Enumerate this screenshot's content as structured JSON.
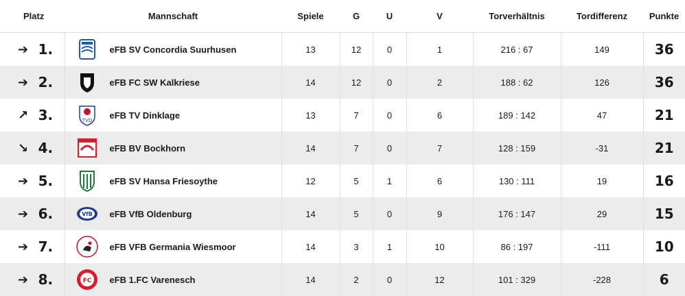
{
  "headers": {
    "platz": "Platz",
    "mannschaft": "Mannschaft",
    "spiele": "Spiele",
    "g": "G",
    "u": "U",
    "v": "V",
    "torverhaeltnis": "Torverhältnis",
    "tordifferenz": "Tordifferenz",
    "punkte": "Punkte"
  },
  "rows": [
    {
      "arrow": "➔",
      "trend": "same",
      "rank": "1.",
      "team": "eFB SV Concordia Suurhusen",
      "spiele": "13",
      "g": "12",
      "u": "0",
      "v": "1",
      "tore": "216 : 67",
      "diff": "149",
      "punkte": "36",
      "logo_color": "#1e5aa8"
    },
    {
      "arrow": "➔",
      "trend": "same",
      "rank": "2.",
      "team": "eFB FC SW Kalkriese",
      "spiele": "14",
      "g": "12",
      "u": "0",
      "v": "2",
      "tore": "188 : 62",
      "diff": "126",
      "punkte": "36",
      "logo_color": "#111111"
    },
    {
      "arrow": "↗",
      "trend": "up",
      "rank": "3.",
      "team": "eFB TV Dinklage",
      "spiele": "13",
      "g": "7",
      "u": "0",
      "v": "6",
      "tore": "189 : 142",
      "diff": "47",
      "punkte": "21",
      "logo_color": "#c8102e"
    },
    {
      "arrow": "↘",
      "trend": "down",
      "rank": "4.",
      "team": "eFB BV Bockhorn",
      "spiele": "14",
      "g": "7",
      "u": "0",
      "v": "7",
      "tore": "128 : 159",
      "diff": "-31",
      "punkte": "21",
      "logo_color": "#d3202a"
    },
    {
      "arrow": "➔",
      "trend": "same",
      "rank": "5.",
      "team": "eFB SV Hansa Friesoythe",
      "spiele": "12",
      "g": "5",
      "u": "1",
      "v": "6",
      "tore": "130 : 111",
      "diff": "19",
      "punkte": "16",
      "logo_color": "#1f7a3a"
    },
    {
      "arrow": "➔",
      "trend": "same",
      "rank": "6.",
      "team": "eFB VfB Oldenburg",
      "spiele": "14",
      "g": "5",
      "u": "0",
      "v": "9",
      "tore": "176 : 147",
      "diff": "29",
      "punkte": "15",
      "logo_color": "#1c3f8c"
    },
    {
      "arrow": "➔",
      "trend": "same",
      "rank": "7.",
      "team": "eFB VFB Germania Wiesmoor",
      "spiele": "14",
      "g": "3",
      "u": "1",
      "v": "10",
      "tore": "86 : 197",
      "diff": "-111",
      "punkte": "10",
      "logo_color": "#c8102e"
    },
    {
      "arrow": "➔",
      "trend": "same",
      "rank": "8.",
      "team": "eFB 1.FC Varenesch",
      "spiele": "14",
      "g": "2",
      "u": "0",
      "v": "12",
      "tore": "101 : 329",
      "diff": "-228",
      "punkte": "6",
      "logo_color": "#d3202a"
    }
  ]
}
